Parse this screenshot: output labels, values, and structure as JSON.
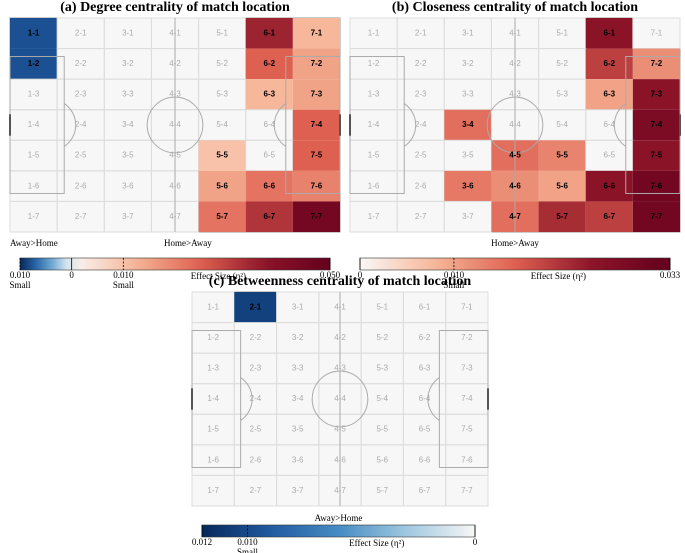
{
  "chart_data": [
    {
      "type": "heatmap",
      "title": "(a) Degree centrality of match location",
      "labels": [
        [
          "1-1",
          "2-1",
          "3-1",
          "4-1",
          "5-1",
          "6-1",
          "7-1"
        ],
        [
          "1-2",
          "2-2",
          "3-2",
          "4-2",
          "5-2",
          "6-2",
          "7-2"
        ],
        [
          "1-3",
          "2-3",
          "3-3",
          "4-3",
          "5-3",
          "6-3",
          "7-3"
        ],
        [
          "1-4",
          "2-4",
          "3-4",
          "4-4",
          "5-4",
          "6-4",
          "7-4"
        ],
        [
          "1-5",
          "2-5",
          "3-5",
          "4-5",
          "5-5",
          "6-5",
          "7-5"
        ],
        [
          "1-6",
          "2-6",
          "3-6",
          "4-6",
          "5-6",
          "6-6",
          "7-6"
        ],
        [
          "1-7",
          "2-7",
          "3-7",
          "4-7",
          "5-7",
          "6-7",
          "7-7"
        ]
      ],
      "values": [
        [
          -0.008,
          null,
          null,
          null,
          null,
          0.035,
          0.012
        ],
        [
          -0.008,
          null,
          null,
          null,
          null,
          0.025,
          0.015
        ],
        [
          null,
          null,
          null,
          null,
          null,
          0.012,
          0.015
        ],
        [
          null,
          null,
          null,
          null,
          null,
          null,
          0.025
        ],
        [
          null,
          null,
          null,
          null,
          0.01,
          null,
          0.025
        ],
        [
          null,
          null,
          null,
          null,
          0.015,
          0.022,
          0.02
        ],
        [
          null,
          null,
          null,
          null,
          0.022,
          0.032,
          0.045
        ]
      ],
      "colorbar": {
        "clim": [
          -0.01,
          0.05
        ],
        "ticks": [
          {
            "value": -0.01,
            "label": "0.010",
            "note": "Small"
          },
          0,
          {
            "value": 0.01,
            "label": "0.010",
            "note": "Small"
          },
          {
            "value": 0.05,
            "label": "0.050"
          }
        ],
        "label": "Effect Size (η²)",
        "left_label": "Away>Home",
        "right_label": "Home>Away"
      }
    },
    {
      "type": "heatmap",
      "title": "(b) Closeness centrality of match location",
      "labels": [
        [
          "1-1",
          "2-1",
          "3-1",
          "4-1",
          "5-1",
          "6-1",
          "7-1"
        ],
        [
          "1-2",
          "2-2",
          "3-2",
          "4-2",
          "5-2",
          "6-2",
          "7-2"
        ],
        [
          "1-3",
          "2-3",
          "3-3",
          "4-3",
          "5-3",
          "6-3",
          "7-3"
        ],
        [
          "1-4",
          "2-4",
          "3-4",
          "4-4",
          "5-4",
          "6-4",
          "7-4"
        ],
        [
          "1-5",
          "2-5",
          "3-5",
          "4-5",
          "5-5",
          "6-5",
          "7-5"
        ],
        [
          "1-6",
          "2-6",
          "3-6",
          "4-6",
          "5-6",
          "6-6",
          "7-6"
        ],
        [
          "1-7",
          "2-7",
          "3-7",
          "4-7",
          "5-7",
          "6-7",
          "7-7"
        ]
      ],
      "values": [
        [
          null,
          null,
          null,
          null,
          null,
          0.025,
          null
        ],
        [
          null,
          null,
          null,
          null,
          null,
          0.02,
          0.012
        ],
        [
          null,
          null,
          null,
          null,
          null,
          0.01,
          0.025
        ],
        [
          null,
          null,
          0.015,
          null,
          null,
          null,
          0.028
        ],
        [
          null,
          null,
          null,
          0.015,
          0.013,
          null,
          0.025
        ],
        [
          null,
          null,
          0.014,
          0.012,
          0.01,
          0.025,
          0.03
        ],
        [
          null,
          null,
          null,
          0.015,
          0.022,
          0.02,
          0.03
        ]
      ],
      "colorbar": {
        "clim": [
          0,
          0.033
        ],
        "ticks": [
          0,
          {
            "value": 0.01,
            "label": "0.010",
            "note": "Small"
          },
          {
            "value": 0.033,
            "label": "0.033"
          }
        ],
        "label": "Effect Size (η²)",
        "right_label": "Home>Away"
      }
    },
    {
      "type": "heatmap",
      "title": "(c) Betweenness centrality of match location",
      "labels": [
        [
          "1-1",
          "2-1",
          "3-1",
          "4-1",
          "5-1",
          "6-1",
          "7-1"
        ],
        [
          "1-2",
          "2-2",
          "3-2",
          "4-2",
          "5-2",
          "6-2",
          "7-2"
        ],
        [
          "1-3",
          "2-3",
          "3-3",
          "4-3",
          "5-3",
          "6-3",
          "7-3"
        ],
        [
          "1-4",
          "2-4",
          "3-4",
          "4-4",
          "5-4",
          "6-4",
          "7-4"
        ],
        [
          "1-5",
          "2-5",
          "3-5",
          "4-5",
          "5-5",
          "6-5",
          "7-5"
        ],
        [
          "1-6",
          "2-6",
          "3-6",
          "4-6",
          "5-6",
          "6-6",
          "7-6"
        ],
        [
          "1-7",
          "2-7",
          "3-7",
          "4-7",
          "5-7",
          "6-7",
          "7-7"
        ]
      ],
      "values": [
        [
          null,
          -0.0105,
          null,
          null,
          null,
          null,
          null
        ],
        [
          null,
          null,
          null,
          null,
          null,
          null,
          null
        ],
        [
          null,
          null,
          null,
          null,
          null,
          null,
          null
        ],
        [
          null,
          null,
          null,
          null,
          null,
          null,
          null
        ],
        [
          null,
          null,
          null,
          null,
          null,
          null,
          null
        ],
        [
          null,
          null,
          null,
          null,
          null,
          null,
          null
        ],
        [
          null,
          null,
          null,
          null,
          null,
          null,
          null
        ]
      ],
      "colorbar": {
        "clim": [
          -0.012,
          0
        ],
        "ticks": [
          {
            "value": -0.012,
            "label": "0.012"
          },
          {
            "value": -0.01,
            "label": "0.010",
            "note": "Small"
          },
          0
        ],
        "label": "Effect Size (η²)",
        "left_label": "Away>Home"
      }
    }
  ]
}
